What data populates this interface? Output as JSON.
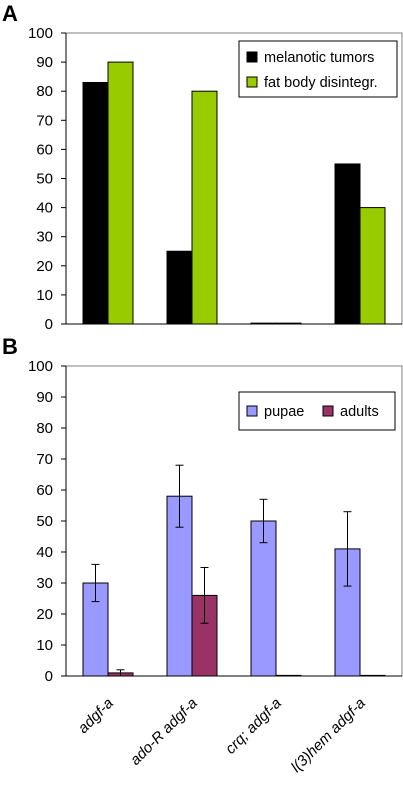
{
  "panels": {
    "a": {
      "label": "A"
    },
    "b": {
      "label": "B"
    }
  },
  "chart_data": [
    {
      "type": "bar",
      "panel": "A",
      "categories": [
        "adgf-a",
        "ado-R adgf-a",
        "crq; adgf-a",
        "l(3)hem adgf-a"
      ],
      "series": [
        {
          "name": "melanotic tumors",
          "color": "#000000",
          "values": [
            83,
            25,
            0.3,
            55
          ]
        },
        {
          "name": "fat body disintegr.",
          "color": "#99cc00",
          "values": [
            90,
            80,
            0.3,
            40
          ]
        }
      ],
      "ylim": [
        0,
        100
      ],
      "yticks": [
        0,
        10,
        20,
        30,
        40,
        50,
        60,
        70,
        80,
        90,
        100
      ],
      "legend": "top-right",
      "grid": false
    },
    {
      "type": "bar",
      "panel": "B",
      "categories": [
        "adgf-a",
        "ado-R adgf-a",
        "crq; adgf-a",
        "l(3)hem adgf-a"
      ],
      "series": [
        {
          "name": "pupae",
          "color": "#9999ff",
          "values": [
            30,
            58,
            50,
            41
          ],
          "errors": [
            6,
            10,
            7,
            12
          ]
        },
        {
          "name": "adults",
          "color": "#993366",
          "values": [
            1,
            26,
            0.2,
            0.2
          ],
          "errors": [
            1,
            9,
            0,
            0
          ]
        }
      ],
      "ylim": [
        0,
        100
      ],
      "yticks": [
        0,
        10,
        20,
        30,
        40,
        50,
        60,
        70,
        80,
        90,
        100
      ],
      "legend": "top-right",
      "grid": false
    }
  ]
}
